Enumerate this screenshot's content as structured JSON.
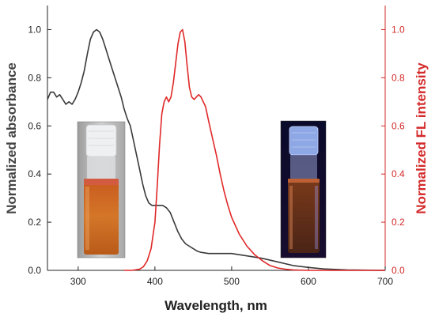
{
  "chart_data": {
    "type": "line",
    "xlabel": "Wavelength, nm",
    "ylabel_left": "Normalized absorbance",
    "ylabel_right": "Normalized FL intensity",
    "xlim": [
      260,
      700
    ],
    "ylim_left": [
      0.0,
      1.1
    ],
    "ylim_right": [
      0.0,
      1.1
    ],
    "x_ticks": [
      "300",
      "400",
      "500",
      "600",
      "700"
    ],
    "y_ticks_left": [
      "0.0",
      "0.2",
      "0.4",
      "0.6",
      "0.8",
      "1.0"
    ],
    "y_ticks_right": [
      "0.0",
      "0.2",
      "0.4",
      "0.6",
      "0.8",
      "1.0"
    ],
    "grid": false,
    "colors": {
      "absorbance": "#3a3a3a",
      "fluorescence": "#e02828",
      "right_axis": "#d42a2a"
    },
    "series": [
      {
        "key": "absorbance",
        "axis": "left",
        "x": [
          260,
          264,
          268,
          272,
          276,
          280,
          284,
          288,
          292,
          296,
          300,
          304,
          308,
          312,
          316,
          320,
          324,
          328,
          332,
          336,
          340,
          344,
          348,
          352,
          356,
          360,
          364,
          368,
          372,
          376,
          380,
          384,
          388,
          392,
          396,
          400,
          405,
          410,
          415,
          420,
          425,
          430,
          435,
          440,
          445,
          450,
          455,
          460,
          470,
          480,
          490,
          500,
          510,
          520,
          540,
          560,
          580,
          600,
          620,
          650,
          700
        ],
        "y": [
          0.71,
          0.74,
          0.74,
          0.72,
          0.73,
          0.71,
          0.69,
          0.7,
          0.69,
          0.71,
          0.74,
          0.78,
          0.83,
          0.9,
          0.96,
          0.99,
          1.0,
          0.99,
          0.96,
          0.92,
          0.88,
          0.84,
          0.8,
          0.76,
          0.72,
          0.67,
          0.63,
          0.6,
          0.54,
          0.48,
          0.42,
          0.36,
          0.31,
          0.28,
          0.27,
          0.27,
          0.27,
          0.27,
          0.26,
          0.24,
          0.2,
          0.16,
          0.13,
          0.11,
          0.1,
          0.09,
          0.08,
          0.075,
          0.07,
          0.07,
          0.07,
          0.07,
          0.065,
          0.06,
          0.05,
          0.035,
          0.02,
          0.012,
          0.006,
          0.002,
          0.0
        ]
      },
      {
        "key": "fluorescence",
        "axis": "right",
        "x": [
          360,
          370,
          380,
          385,
          390,
          395,
          400,
          403,
          406,
          409,
          412,
          415,
          418,
          421,
          424,
          427,
          430,
          433,
          436,
          439,
          442,
          445,
          448,
          451,
          454,
          457,
          460,
          463,
          466,
          470,
          475,
          480,
          485,
          490,
          495,
          500,
          510,
          520,
          530,
          540,
          550,
          560,
          570,
          580,
          600,
          650,
          700
        ],
        "y": [
          0.0,
          0.0,
          0.005,
          0.015,
          0.04,
          0.09,
          0.2,
          0.35,
          0.52,
          0.65,
          0.7,
          0.72,
          0.7,
          0.72,
          0.78,
          0.86,
          0.94,
          0.99,
          1.0,
          0.95,
          0.85,
          0.76,
          0.72,
          0.71,
          0.72,
          0.73,
          0.72,
          0.7,
          0.68,
          0.62,
          0.55,
          0.48,
          0.4,
          0.33,
          0.27,
          0.22,
          0.15,
          0.1,
          0.065,
          0.04,
          0.02,
          0.01,
          0.005,
          0.002,
          0.0,
          0.0,
          0.0
        ]
      }
    ],
    "insets": [
      {
        "description_key": "vial-daylight",
        "x_center": 310,
        "y_top": 0.65,
        "y_bottom": 0.05
      },
      {
        "description_key": "vial-uv",
        "x_center": 597,
        "y_top": 0.62,
        "y_bottom": 0.08
      }
    ]
  }
}
